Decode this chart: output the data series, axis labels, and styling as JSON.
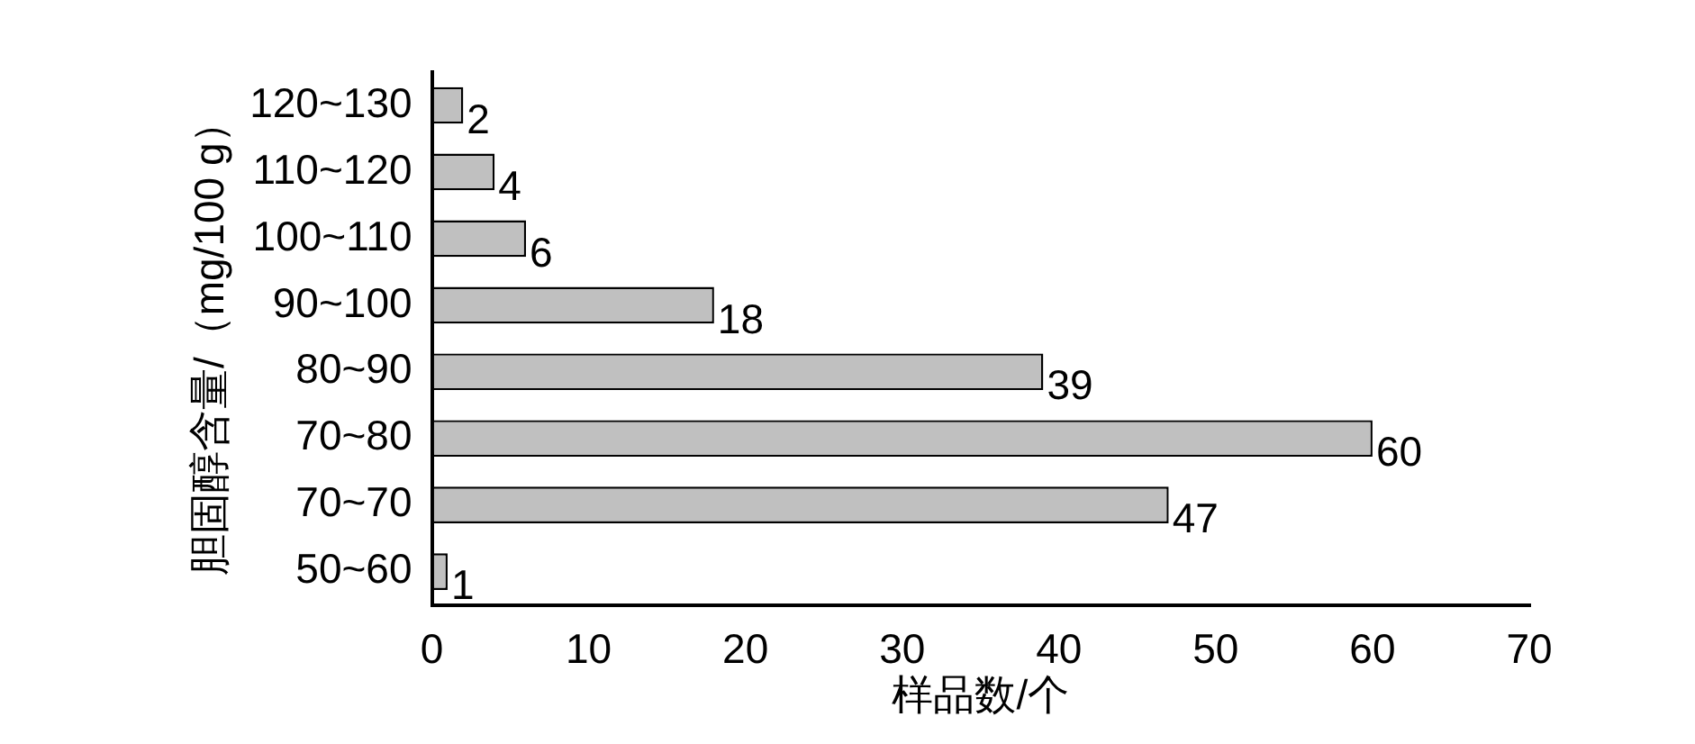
{
  "chart_data": {
    "type": "bar",
    "orientation": "horizontal",
    "xlabel": "样品数/个",
    "ylabel": "胆固醇含量/（mg/100 g）",
    "categories": [
      "120~130",
      "110~120",
      "100~110",
      "90~100",
      "80~90",
      "70~80",
      "70~70",
      "50~60"
    ],
    "values": [
      2,
      4,
      6,
      18,
      39,
      60,
      47,
      1
    ],
    "color": "#c0c0c0",
    "xlim": [
      0,
      70
    ],
    "xticks": [
      0,
      10,
      20,
      30,
      40,
      50,
      60,
      70
    ],
    "grid": false,
    "legend": false,
    "data_labels": true
  }
}
